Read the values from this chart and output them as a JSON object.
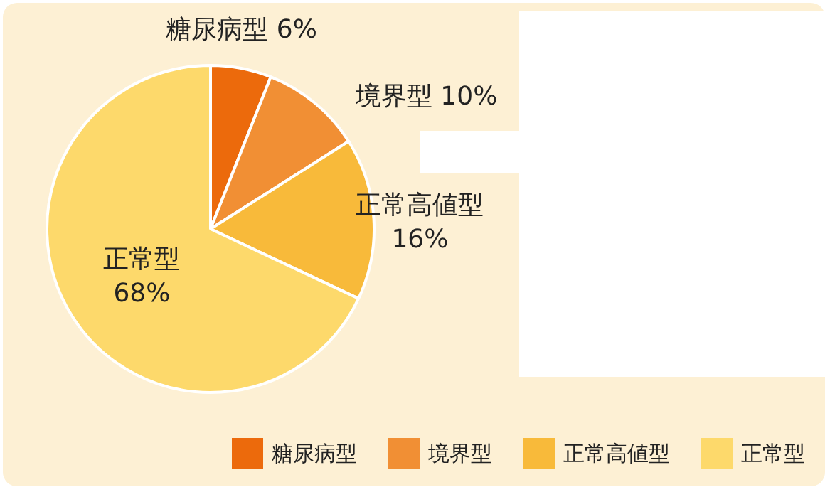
{
  "chart_data": {
    "type": "pie",
    "categories": [
      "糖尿病型",
      "境界型",
      "正常高値型",
      "正常型"
    ],
    "values": [
      6,
      10,
      16,
      68
    ],
    "colors": [
      "#ec6a0c",
      "#f18f34",
      "#f8ba3a",
      "#fdd96b"
    ],
    "value_labels": [
      "6%",
      "10%",
      "16%",
      "68%"
    ],
    "legend": "bottom right"
  }
}
